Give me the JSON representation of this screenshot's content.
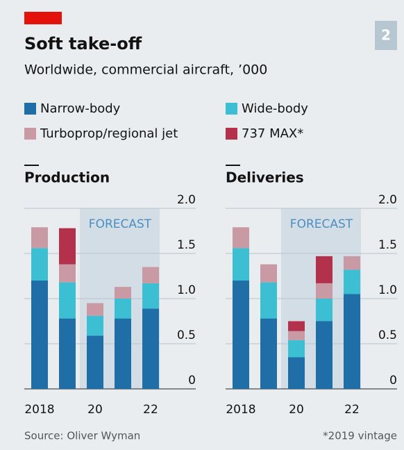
{
  "title": "Soft take-off",
  "subtitle": "Worldwide, commercial aircraft, ’000",
  "badge": "2",
  "source": "Source: Oliver Wyman",
  "note": "*2019 vintage",
  "forecast": "FORECAST",
  "chart_data": [
    {
      "type": "bar",
      "stacked": true,
      "title": "Production",
      "categories": [
        "2018",
        null,
        "20",
        null,
        "22"
      ],
      "series": [
        {
          "name": "Narrow-body",
          "color": "#1f6ea8",
          "values": [
            1.2,
            0.78,
            0.59,
            0.78,
            0.89
          ]
        },
        {
          "name": "Wide-body",
          "color": "#3dbfd3",
          "values": [
            0.36,
            0.4,
            0.22,
            0.22,
            0.28
          ]
        },
        {
          "name": "Turboprop/regional jet",
          "color": "#c99aa4",
          "values": [
            0.23,
            0.2,
            0.14,
            0.13,
            0.18
          ]
        },
        {
          "name": "737 MAX*",
          "color": "#b3314b",
          "values": [
            0,
            0.4,
            0,
            0,
            0
          ]
        }
      ],
      "ylim": [
        0,
        2
      ],
      "yticks": [
        0,
        0.5,
        {
          "value": 1,
          "label": "1.0"
        },
        1.5,
        {
          "value": 2,
          "label": "2.0"
        }
      ]
    },
    {
      "type": "bar",
      "stacked": true,
      "title": "Deliveries",
      "categories": [
        "2018",
        null,
        "20",
        null,
        "22"
      ],
      "series": [
        {
          "name": "Narrow-body",
          "color": "#1f6ea8",
          "values": [
            1.2,
            0.78,
            0.35,
            0.75,
            1.05
          ]
        },
        {
          "name": "Wide-body",
          "color": "#3dbfd3",
          "values": [
            0.36,
            0.4,
            0.19,
            0.25,
            0.27
          ]
        },
        {
          "name": "Turboprop/regional jet",
          "color": "#c99aa4",
          "values": [
            0.23,
            0.2,
            0.1,
            0.17,
            0.15
          ]
        },
        {
          "name": "737 MAX*",
          "color": "#b3314b",
          "values": [
            0,
            0,
            0.11,
            0.3,
            0
          ]
        }
      ],
      "ylim": [
        0,
        2
      ],
      "yticks": [
        0,
        0.5,
        {
          "value": 1,
          "label": "1.0"
        },
        1.5,
        {
          "value": 2,
          "label": "2.0"
        }
      ]
    }
  ]
}
